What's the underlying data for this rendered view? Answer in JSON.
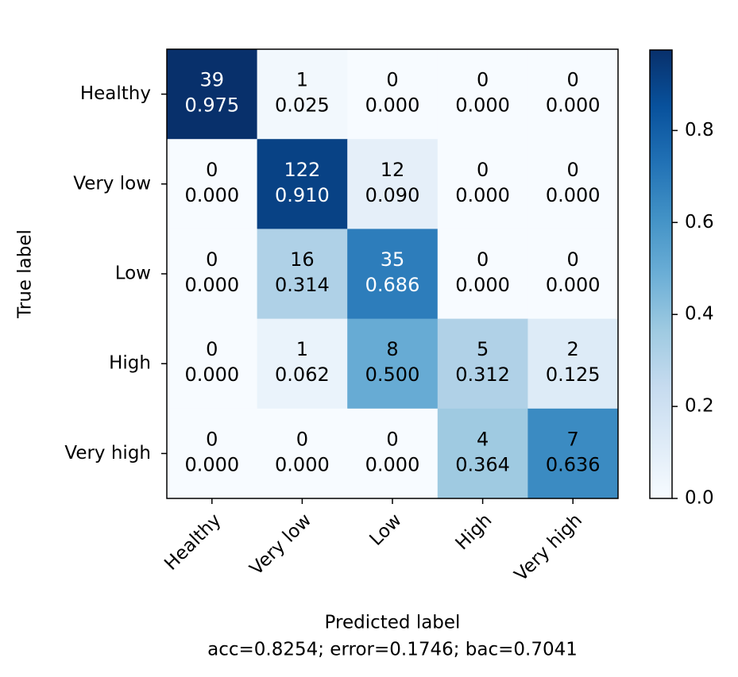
{
  "chart_data": {
    "type": "heatmap",
    "xlabel": "Predicted label",
    "subtitle": "acc=0.8254; error=0.1746; bac=0.7041",
    "ylabel": "True label",
    "x_categories": [
      "Healthy",
      "Very low",
      "Low",
      "High",
      "Very high"
    ],
    "y_categories": [
      "Healthy",
      "Very low",
      "Low",
      "High",
      "Very high"
    ],
    "counts": [
      [
        39,
        1,
        0,
        0,
        0
      ],
      [
        0,
        122,
        12,
        0,
        0
      ],
      [
        0,
        16,
        35,
        0,
        0
      ],
      [
        0,
        1,
        8,
        5,
        2
      ],
      [
        0,
        0,
        0,
        4,
        7
      ]
    ],
    "values": [
      [
        0.975,
        0.025,
        0,
        0,
        0
      ],
      [
        0,
        0.91,
        0.09,
        0,
        0
      ],
      [
        0,
        0.314,
        0.686,
        0,
        0
      ],
      [
        0,
        0.062,
        0.5,
        0.312,
        0.125
      ],
      [
        0,
        0,
        0,
        0.364,
        0.636
      ]
    ],
    "value_labels": [
      [
        "0.975",
        "0.025",
        "0.000",
        "0.000",
        "0.000"
      ],
      [
        "0.000",
        "0.910",
        "0.090",
        "0.000",
        "0.000"
      ],
      [
        "0.000",
        "0.314",
        "0.686",
        "0.000",
        "0.000"
      ],
      [
        "0.000",
        "0.062",
        "0.500",
        "0.312",
        "0.125"
      ],
      [
        "0.000",
        "0.000",
        "0.000",
        "0.364",
        "0.636"
      ]
    ],
    "colormap": "Blues",
    "clim": [
      0,
      0.975
    ],
    "cticks": [
      {
        "value": 0,
        "label": "0.0"
      },
      {
        "value": 0.2,
        "label": "0.2"
      },
      {
        "value": 0.4,
        "label": "0.4"
      },
      {
        "value": 0.6,
        "label": "0.6"
      },
      {
        "value": 0.8,
        "label": "0.8"
      }
    ]
  }
}
